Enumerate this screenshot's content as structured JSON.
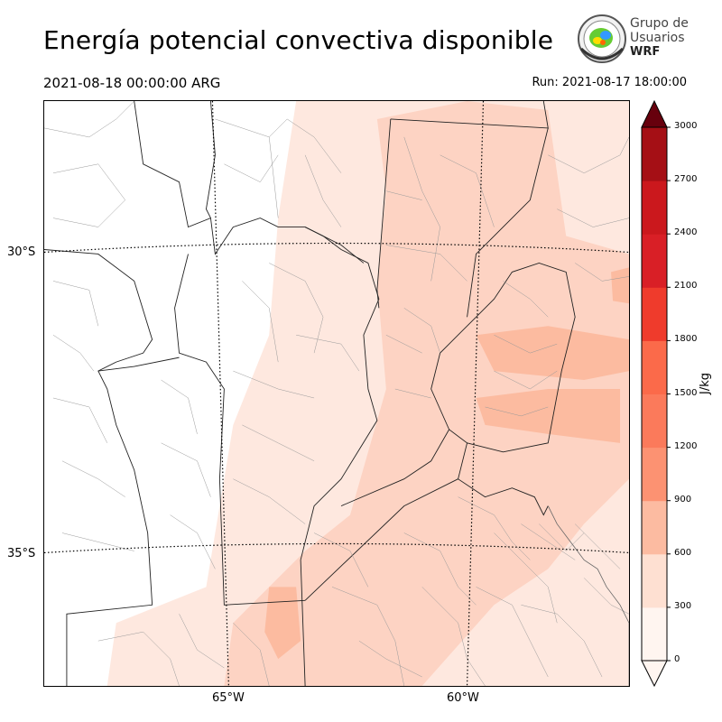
{
  "title": "Energía potencial convectiva disponible",
  "valid_time": "2021-08-18 00:00:00 ARG",
  "run_time": "Run: 2021-08-17 18:00:00",
  "logo": {
    "line1": "Grupo de",
    "line2": "Usuarios",
    "line3": "WRF",
    "icon": "globe-seal-icon"
  },
  "map": {
    "latitude_labels": [
      "30°S",
      "35°S"
    ],
    "longitude_labels": [
      "65°W",
      "60°W"
    ],
    "fill_colors": [
      "#fee8df",
      "#fdd3c3",
      "#fcbba0",
      "#fca082"
    ]
  },
  "colorbar": {
    "units": "J/kg",
    "ticks": [
      "0",
      "300",
      "600",
      "900",
      "1200",
      "1500",
      "1800",
      "2100",
      "2400",
      "2700",
      "3000"
    ],
    "colors": [
      "#fff5f0",
      "#fee0d2",
      "#fcbba1",
      "#fc9272",
      "#fb7a5b",
      "#fb6a4a",
      "#ef3b2c",
      "#d91f26",
      "#cb181d",
      "#a50f15",
      "#7a0510"
    ]
  }
}
